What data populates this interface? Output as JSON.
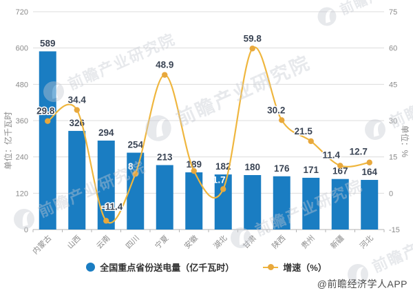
{
  "meta": {
    "credit": "@前瞻经济学人APP",
    "watermark": "前瞻产业研究院"
  },
  "colors": {
    "bar": "#1A7DC2",
    "line": "#EFB63E",
    "line_dot": "#E8A83C",
    "value_label": "#3A4454",
    "tick_label": "#8a8a8a",
    "gridline": "#dcdcdc",
    "axis_line": "#b3b3b3",
    "watermark": "#c7cbd3"
  },
  "chart_data": {
    "type": "combo",
    "categories": [
      "内蒙古",
      "山西",
      "云南",
      "四川",
      "宁夏",
      "安徽",
      "湖北",
      "甘肃",
      "陕西",
      "贵州",
      "新疆",
      "河北"
    ],
    "series": [
      {
        "name": "全国重点省份送电量（亿千瓦时）",
        "type": "bar",
        "axis": "left",
        "values": [
          589,
          326,
          294,
          254,
          213,
          189,
          182,
          180,
          176,
          171,
          167,
          164
        ],
        "labels": [
          "589",
          "326",
          "294",
          "254",
          "213",
          "189",
          "182",
          "180",
          "176",
          "171",
          "167",
          "164"
        ]
      },
      {
        "name": "增速（%）",
        "type": "line",
        "axis": "right",
        "values": [
          29.8,
          34.4,
          -11.4,
          8,
          48.9,
          9.2,
          1.7,
          59.8,
          30.2,
          21.5,
          11.4,
          12.7
        ],
        "labels": [
          "29.8",
          "34.4",
          "-11.4",
          "8",
          "48.9",
          "",
          "1.7",
          "59.8",
          "30.2",
          "21.5",
          "11.4",
          "12.7"
        ],
        "label_colors": [
          "dark",
          "dark",
          "dark",
          "white",
          "dark",
          "none",
          "white",
          "dark",
          "dark",
          "dark",
          "dark",
          "dark"
        ],
        "label_offsets": [
          [
            -3,
            -10
          ],
          [
            0,
            -10
          ],
          [
            9,
            -16
          ],
          [
            -7,
            -6
          ],
          [
            0,
            -10
          ],
          [
            0,
            0
          ],
          [
            -6,
            -9
          ],
          [
            0,
            -10
          ],
          [
            -8,
            -10
          ],
          [
            -11,
            -10
          ],
          [
            -13,
            -11
          ],
          [
            -16,
            -11
          ]
        ]
      }
    ],
    "left_axis": {
      "title": "单位：亿千瓦时",
      "min": 0,
      "max": 720,
      "ticks": [
        720,
        600,
        480,
        360,
        240,
        120,
        0
      ]
    },
    "right_axis": {
      "title": "单位：%",
      "min": -15,
      "max": 75,
      "ticks": [
        75,
        60,
        45,
        30,
        15,
        0,
        -15
      ]
    },
    "grid": true,
    "legend_position": "bottom"
  }
}
